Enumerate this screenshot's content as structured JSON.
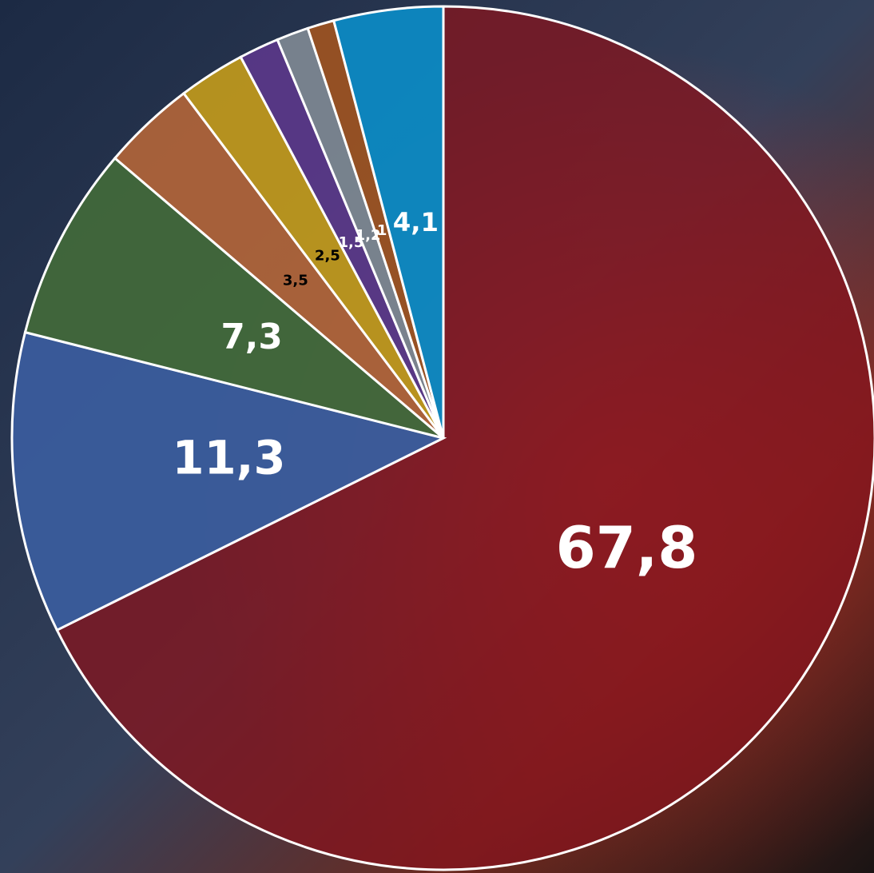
{
  "chart_data": {
    "type": "pie",
    "categories": [
      null,
      null,
      null,
      null,
      null,
      null,
      null,
      null,
      null
    ],
    "values": [
      67.8,
      11.3,
      7.3,
      3.5,
      2.5,
      1.5,
      1.2,
      1,
      4.1
    ],
    "value_labels": [
      "67,8",
      "11,3",
      "7,3",
      "3,5",
      "2,5",
      "1,5",
      "1,2",
      "1",
      "4,1"
    ],
    "colors": [
      "#84141d",
      "#3a5c9c",
      "#41683a",
      "#ad6339",
      "#bd971c",
      "#583887",
      "#7b8690",
      "#9a5222",
      "#0c89c2"
    ],
    "label_colors": [
      "#ffffff",
      "#ffffff",
      "#ffffff",
      "#000000",
      "#000000",
      "#ffffff",
      "#ffffff",
      "#ffffff",
      "#ffffff"
    ]
  }
}
